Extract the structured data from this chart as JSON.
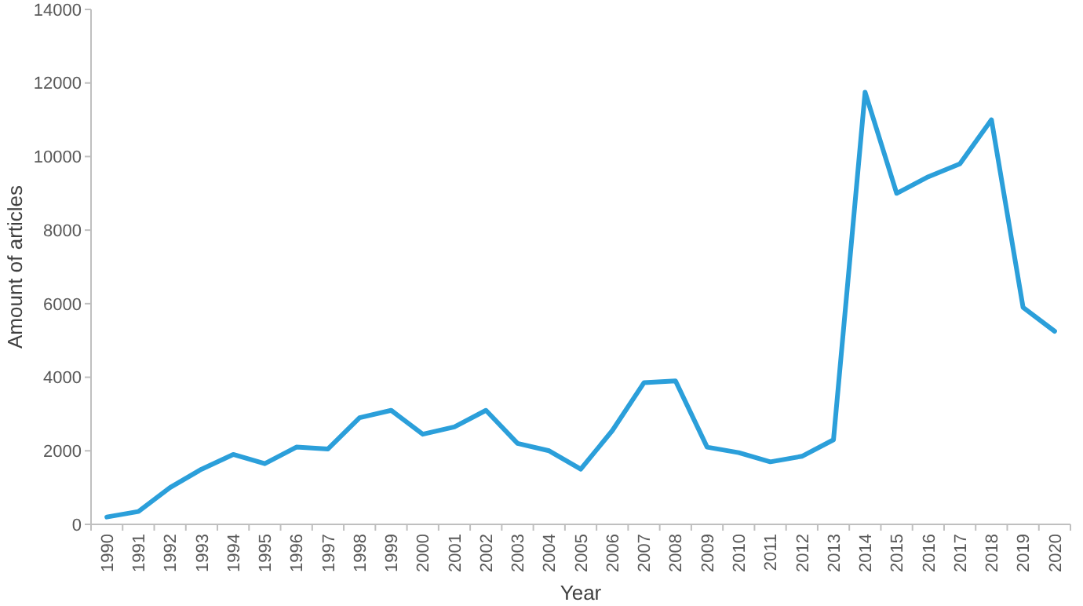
{
  "chart_data": {
    "type": "line",
    "xlabel": "Year",
    "ylabel": "Amount of articles",
    "categories": [
      "1990",
      "1991",
      "1992",
      "1993",
      "1994",
      "1995",
      "1996",
      "1997",
      "1998",
      "1999",
      "2000",
      "2001",
      "2002",
      "2003",
      "2004",
      "2005",
      "2006",
      "2007",
      "2008",
      "2009",
      "2010",
      "2011",
      "2012",
      "2013",
      "2014",
      "2015",
      "2016",
      "2017",
      "2018",
      "2019",
      "2020"
    ],
    "series": [
      {
        "color": "#2b9fda",
        "values": [
          200,
          350,
          1000,
          1500,
          1900,
          1650,
          2100,
          2050,
          2900,
          3100,
          2450,
          2650,
          3100,
          2200,
          2000,
          1500,
          2550,
          3850,
          3900,
          2100,
          1950,
          1700,
          1850,
          2300,
          11750,
          9000,
          9450,
          9800,
          11000,
          5900,
          5250
        ]
      }
    ],
    "ylim": [
      0,
      14000
    ],
    "yticks": [
      0,
      2000,
      4000,
      6000,
      8000,
      10000,
      12000,
      14000
    ],
    "grid": false,
    "marker": "none",
    "line_style": "solid"
  }
}
